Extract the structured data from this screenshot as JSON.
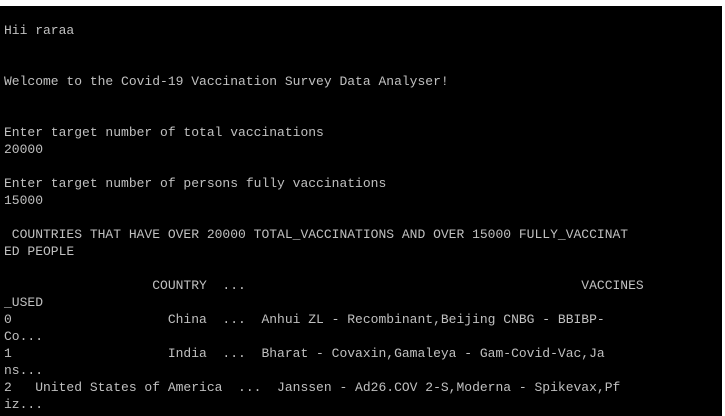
{
  "console": {
    "lines": [
      "Hii raraa",
      "",
      "",
      "Welcome to the Covid-19 Vaccination Survey Data Analyser!",
      "",
      "",
      "Enter target number of total vaccinations",
      "20000",
      "",
      "Enter target number of persons fully vaccinations",
      "15000",
      "",
      " COUNTRIES THAT HAVE OVER 20000 TOTAL_VACCINATIONS AND OVER 15000 FULLY_VACCINAT",
      "ED PEOPLE",
      "",
      "                   COUNTRY  ...                                           VACCINES",
      "_USED",
      "0                    China  ...  Anhui ZL - Recombinant,Beijing CNBG - BBIBP-",
      "Co...",
      "1                    India  ...  Bharat - Covaxin,Gamaleya - Gam-Covid-Vac,Ja",
      "ns...",
      "2   United States of America  ...  Janssen - Ad26.COV 2-S,Moderna - Spikevax,Pf",
      "iz..."
    ]
  },
  "colors": {
    "background": "#000000",
    "text": "#c0c0c0"
  }
}
